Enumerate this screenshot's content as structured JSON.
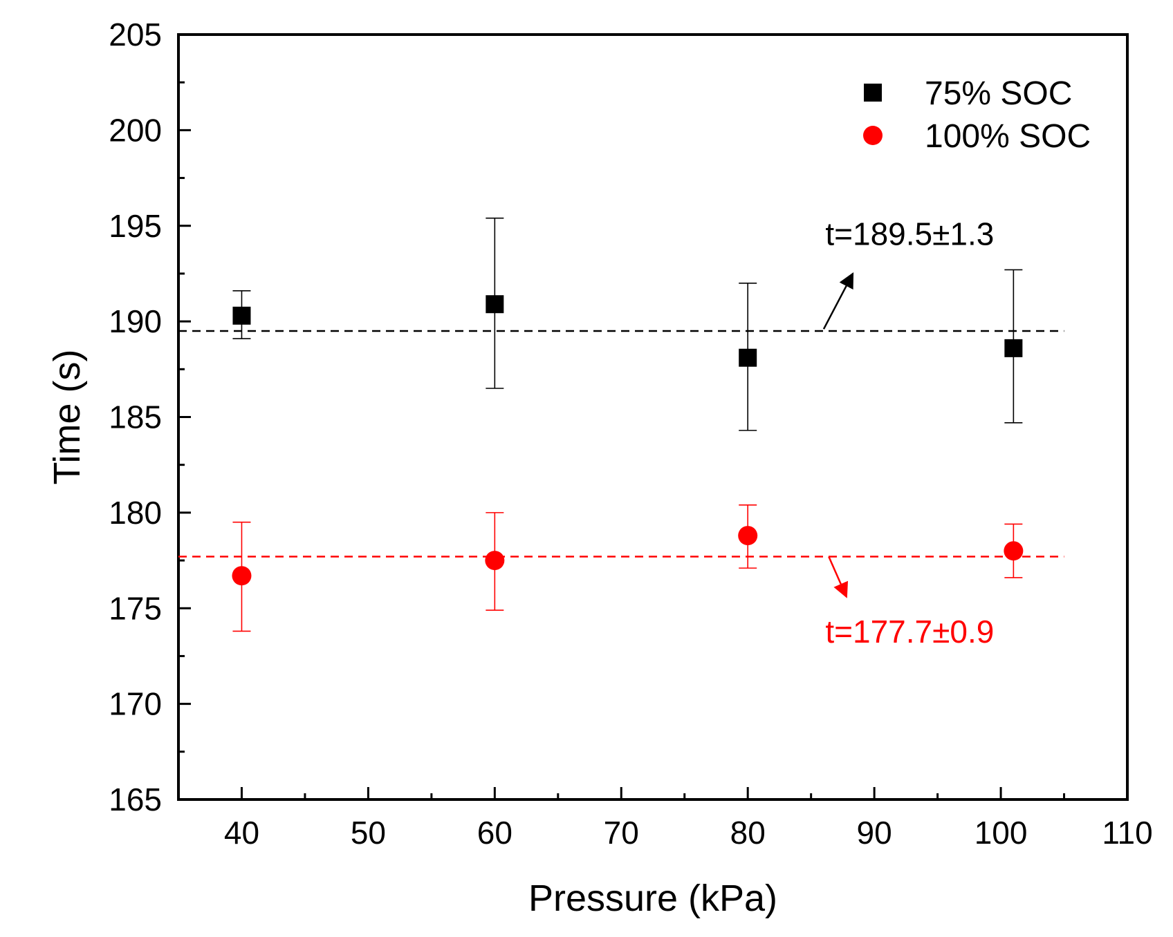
{
  "chart_data": {
    "type": "scatter",
    "title": "",
    "xlabel": "Pressure (kPa)",
    "ylabel": "Time (s)",
    "xlim": [
      35,
      110
    ],
    "ylim": [
      165,
      205
    ],
    "x_ticks": [
      40,
      50,
      60,
      70,
      80,
      90,
      100,
      110
    ],
    "y_ticks": [
      165,
      170,
      175,
      180,
      185,
      190,
      195,
      200,
      205
    ],
    "grid": false,
    "legend_position": "top-right",
    "series": [
      {
        "name": "75% SOC",
        "color": "#000000",
        "marker": "square",
        "x": [
          40,
          60,
          80,
          101
        ],
        "y": [
          190.3,
          190.9,
          188.1,
          188.6
        ],
        "err_low": [
          189.1,
          186.5,
          184.3,
          184.7
        ],
        "err_high": [
          191.6,
          195.4,
          192.0,
          192.7
        ]
      },
      {
        "name": "100% SOC",
        "color": "#ff0000",
        "marker": "circle",
        "x": [
          40,
          60,
          80,
          101
        ],
        "y": [
          176.7,
          177.5,
          178.8,
          178.0
        ],
        "err_low": [
          173.8,
          174.9,
          177.1,
          176.6
        ],
        "err_high": [
          179.5,
          180.0,
          180.4,
          179.4
        ]
      }
    ],
    "reference_lines": [
      {
        "y": 189.5,
        "x_from": 35,
        "x_to": 105,
        "color": "#000000",
        "style": "dashed"
      },
      {
        "y": 177.7,
        "x_from": 35,
        "x_to": 105,
        "color": "#ff0000",
        "style": "dashed"
      }
    ],
    "annotations": [
      {
        "text": "t=189.5±1.3",
        "color": "#000000",
        "label_x": 92.8,
        "label_y": 194.0,
        "arrow_from": [
          86.0,
          189.6
        ],
        "arrow_to": [
          88.3,
          192.5
        ]
      },
      {
        "text": "t=177.7±0.9",
        "color": "#ff0000",
        "label_x": 92.8,
        "label_y": 173.2,
        "arrow_from": [
          86.4,
          177.7
        ],
        "arrow_to": [
          87.8,
          175.6
        ]
      }
    ]
  }
}
